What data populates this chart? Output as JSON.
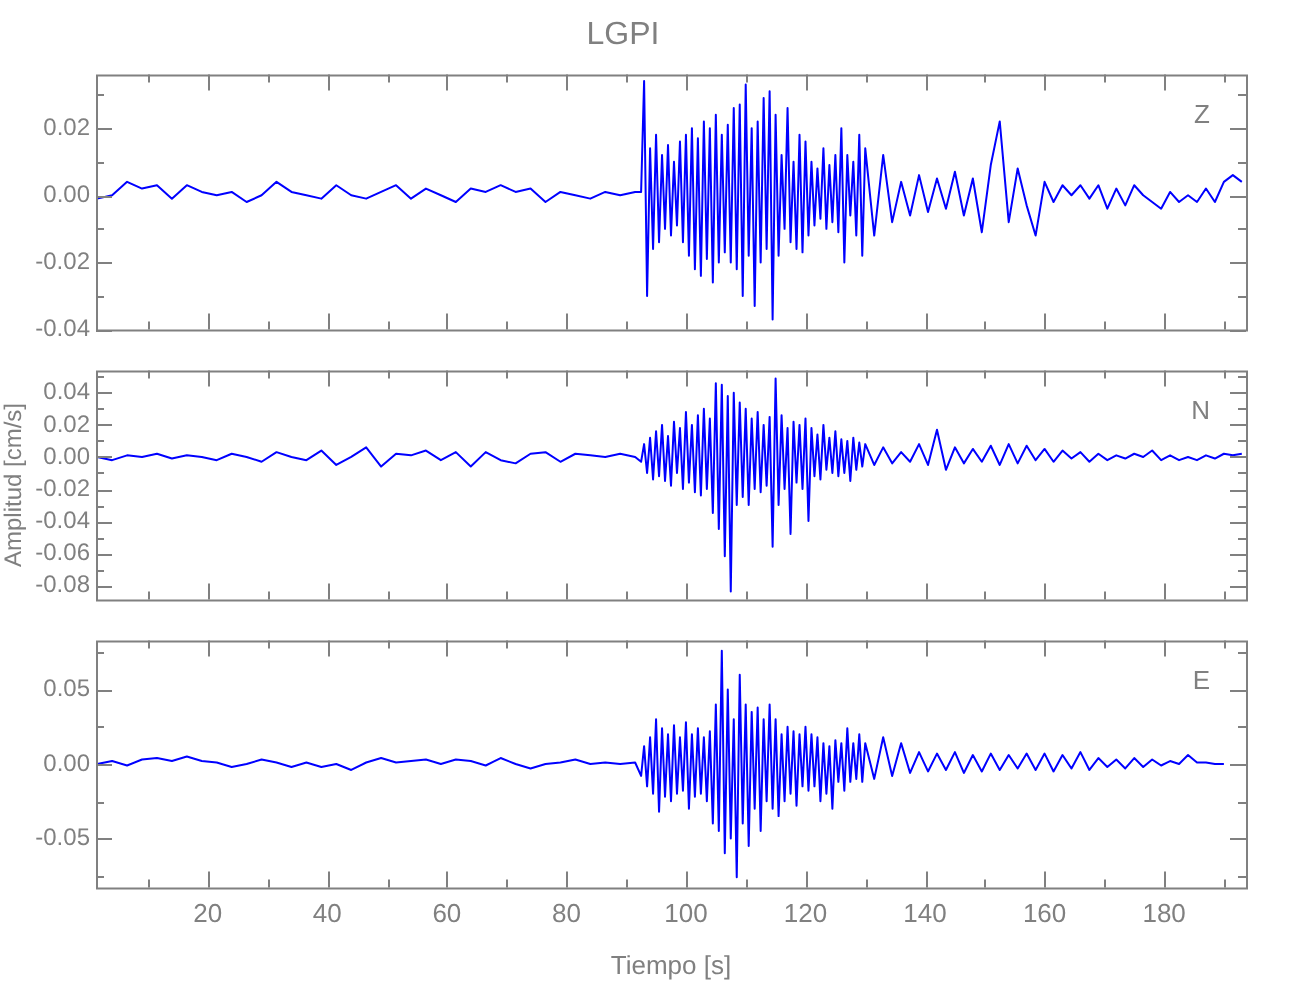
{
  "chart_data": [
    {
      "type": "line",
      "title": "LGPI",
      "annotations": [
        "Z"
      ],
      "tick_labels": "y",
      "x": [
        1.5,
        4,
        6.5,
        9,
        11.5,
        14,
        16.5,
        19,
        21.5,
        24,
        26.5,
        29,
        31.5,
        34,
        36.5,
        39,
        41.5,
        44,
        46.5,
        49,
        51.5,
        54,
        56.5,
        59,
        61.5,
        64,
        66.5,
        69,
        71.5,
        74,
        76.5,
        79,
        81.5,
        84,
        86.5,
        89,
        91.5,
        92.5,
        93,
        93.5,
        94,
        94.5,
        95,
        95.5,
        96,
        96.5,
        97,
        97.5,
        98,
        98.5,
        99,
        99.5,
        100,
        100.5,
        101,
        101.5,
        102,
        102.5,
        103,
        103.5,
        104,
        104.5,
        105,
        105.5,
        106,
        106.5,
        107,
        107.5,
        108,
        108.5,
        109,
        109.5,
        110,
        110.5,
        111,
        111.5,
        112,
        112.5,
        113,
        113.5,
        114,
        114.5,
        115,
        115.5,
        116,
        116.5,
        117,
        117.5,
        118,
        118.5,
        119,
        119.5,
        120,
        120.5,
        121,
        121.5,
        122,
        122.5,
        123,
        123.5,
        124,
        124.5,
        125,
        125.5,
        126,
        126.5,
        127,
        127.5,
        128,
        128.5,
        129,
        129.5,
        130,
        131.5,
        133,
        134.5,
        136,
        137.5,
        139,
        140.5,
        142,
        143.5,
        145,
        146.5,
        148,
        149.5,
        151,
        152.5,
        154,
        155.5,
        157,
        158.5,
        160,
        161.5,
        163,
        164.5,
        166,
        167.5,
        169,
        170.5,
        172,
        173.5,
        175,
        176.5,
        178,
        179.5,
        181,
        182.5,
        184,
        185.5,
        187,
        188.5,
        190,
        191.5,
        193
      ],
      "series": [
        {
          "color": "#0000ff",
          "values": [
            -0.001,
            0.0,
            0.004,
            0.002,
            0.003,
            -0.001,
            0.003,
            0.001,
            0.0,
            0.001,
            -0.002,
            0.0,
            0.004,
            0.001,
            0.0,
            -0.001,
            0.003,
            0.0,
            -0.001,
            0.001,
            0.003,
            -0.001,
            0.002,
            0.0,
            -0.002,
            0.002,
            0.001,
            0.003,
            0.001,
            0.002,
            -0.002,
            0.001,
            0.0,
            -0.001,
            0.001,
            0.0,
            0.001,
            0.001,
            0.034,
            -0.03,
            0.014,
            -0.016,
            0.018,
            -0.014,
            0.012,
            -0.01,
            0.015,
            -0.012,
            0.01,
            -0.009,
            0.016,
            -0.014,
            0.018,
            -0.018,
            0.02,
            -0.022,
            0.017,
            -0.024,
            0.022,
            -0.019,
            0.02,
            -0.026,
            0.024,
            -0.02,
            0.018,
            -0.017,
            0.021,
            -0.02,
            0.026,
            -0.022,
            0.027,
            -0.03,
            0.033,
            -0.018,
            0.02,
            -0.033,
            0.022,
            -0.02,
            0.029,
            -0.016,
            0.031,
            -0.037,
            0.024,
            -0.018,
            0.012,
            -0.01,
            0.026,
            -0.014,
            0.01,
            -0.016,
            0.018,
            -0.017,
            0.016,
            -0.012,
            0.01,
            -0.009,
            0.008,
            -0.007,
            0.014,
            -0.01,
            0.009,
            -0.008,
            0.012,
            -0.011,
            0.02,
            -0.02,
            0.012,
            -0.006,
            0.01,
            -0.012,
            0.018,
            -0.018,
            0.014,
            -0.012,
            0.012,
            -0.008,
            0.004,
            -0.006,
            0.006,
            -0.005,
            0.005,
            -0.004,
            0.007,
            -0.006,
            0.005,
            -0.011,
            0.009,
            0.022,
            -0.008,
            0.008,
            -0.003,
            -0.012,
            0.004,
            -0.002,
            0.003,
            0.0,
            0.003,
            -0.001,
            0.003,
            -0.004,
            0.002,
            -0.003,
            0.003,
            0.0,
            -0.002,
            -0.004,
            0.001,
            -0.002,
            0.0,
            -0.002,
            0.002,
            -0.002,
            0.004,
            0.006,
            0.004
          ]
        }
      ],
      "xlim": [
        1.3,
        193.7
      ],
      "xticks": [
        {
          "value": 10,
          "label": null
        },
        20,
        {
          "value": 30,
          "label": null
        },
        40,
        {
          "value": 50,
          "label": null
        },
        60,
        {
          "value": 70,
          "label": null
        },
        80,
        {
          "value": 90,
          "label": null
        },
        100,
        {
          "value": 110,
          "label": null
        },
        120,
        {
          "value": 130,
          "label": null
        },
        140,
        {
          "value": 150,
          "label": null
        },
        160,
        {
          "value": 170,
          "label": null
        },
        180,
        {
          "value": 190,
          "label": null
        }
      ],
      "ylim": [
        -0.04,
        0.036
      ],
      "yticks": [
        {
          "value": -0.04,
          "label": "-0.04"
        },
        {
          "value": -0.03,
          "label": null
        },
        {
          "value": -0.02,
          "label": "-0.02"
        },
        {
          "value": -0.01,
          "label": null
        },
        {
          "value": 0,
          "label": "0.00"
        },
        {
          "value": 0.01,
          "label": null
        },
        {
          "value": 0.02,
          "label": "0.02"
        },
        {
          "value": 0.03,
          "label": null
        }
      ]
    },
    {
      "type": "line",
      "ylabel": "Amplitud [cm/s]",
      "annotations": [
        "N"
      ],
      "tick_labels": "y",
      "x": [
        1.5,
        4,
        6.5,
        9,
        11.5,
        14,
        16.5,
        19,
        21.5,
        24,
        26.5,
        29,
        31.5,
        34,
        36.5,
        39,
        41.5,
        44,
        46.5,
        49,
        51.5,
        54,
        56.5,
        59,
        61.5,
        64,
        66.5,
        69,
        71.5,
        74,
        76.5,
        79,
        81.5,
        84,
        86.5,
        89,
        91.5,
        92.5,
        93,
        93.5,
        94,
        94.5,
        95,
        95.5,
        96,
        96.5,
        97,
        97.5,
        98,
        98.5,
        99,
        99.5,
        100,
        100.5,
        101,
        101.5,
        102,
        102.5,
        103,
        103.5,
        104,
        104.5,
        105,
        105.5,
        106,
        106.5,
        107,
        107.5,
        108,
        108.5,
        109,
        109.5,
        110,
        110.5,
        111,
        111.5,
        112,
        112.5,
        113,
        113.5,
        114,
        114.5,
        115,
        115.5,
        116,
        116.5,
        117,
        117.5,
        118,
        118.5,
        119,
        119.5,
        120,
        120.5,
        121,
        121.5,
        122,
        122.5,
        123,
        123.5,
        124,
        124.5,
        125,
        125.5,
        126,
        126.5,
        127,
        127.5,
        128,
        128.5,
        129,
        129.5,
        130,
        131.5,
        133,
        134.5,
        136,
        137.5,
        139,
        140.5,
        142,
        143.5,
        145,
        146.5,
        148,
        149.5,
        151,
        152.5,
        154,
        155.5,
        157,
        158.5,
        160,
        161.5,
        163,
        164.5,
        166,
        167.5,
        169,
        170.5,
        172,
        173.5,
        175,
        176.5,
        178,
        179.5,
        181,
        182.5,
        184,
        185.5,
        187,
        188.5,
        190,
        191.5,
        193
      ],
      "series": [
        {
          "color": "#0000ff",
          "values": [
            0.0,
            -0.002,
            0.001,
            0.0,
            0.002,
            -0.001,
            0.001,
            0.0,
            -0.002,
            0.002,
            0.0,
            -0.003,
            0.003,
            0.0,
            -0.002,
            0.004,
            -0.005,
            0.0,
            0.006,
            -0.006,
            0.002,
            0.001,
            0.004,
            -0.002,
            0.003,
            -0.006,
            0.003,
            -0.002,
            -0.004,
            0.002,
            0.003,
            -0.003,
            0.002,
            0.001,
            0.0,
            0.002,
            0.0,
            -0.003,
            0.008,
            -0.01,
            0.012,
            -0.014,
            0.016,
            -0.012,
            0.02,
            -0.015,
            0.013,
            -0.018,
            0.022,
            -0.01,
            0.018,
            -0.02,
            0.028,
            -0.016,
            0.02,
            -0.022,
            0.026,
            -0.024,
            0.03,
            -0.02,
            0.024,
            -0.035,
            0.046,
            -0.045,
            0.045,
            -0.062,
            0.038,
            -0.084,
            0.04,
            -0.03,
            0.034,
            -0.025,
            0.03,
            -0.03,
            0.024,
            -0.02,
            0.028,
            -0.022,
            0.02,
            -0.018,
            0.025,
            -0.056,
            0.049,
            -0.03,
            0.026,
            -0.02,
            0.018,
            -0.048,
            0.022,
            -0.016,
            0.02,
            -0.02,
            0.024,
            -0.04,
            0.018,
            -0.012,
            0.014,
            -0.014,
            0.02,
            -0.008,
            0.012,
            -0.01,
            0.016,
            -0.012,
            0.011,
            -0.01,
            0.01,
            -0.015,
            0.012,
            -0.008,
            0.009,
            -0.006,
            0.008,
            -0.005,
            0.006,
            -0.004,
            0.003,
            -0.003,
            0.008,
            -0.005,
            0.017,
            -0.008,
            0.006,
            -0.004,
            0.005,
            -0.003,
            0.007,
            -0.005,
            0.008,
            -0.004,
            0.007,
            -0.002,
            0.005,
            -0.003,
            0.004,
            -0.001,
            0.003,
            -0.003,
            0.002,
            -0.002,
            0.001,
            -0.001,
            0.002,
            0.0,
            0.004,
            -0.002,
            0.001,
            -0.002,
            0.0,
            -0.002,
            0.001,
            -0.001,
            0.002,
            0.001,
            0.002
          ]
        }
      ],
      "xlim": [
        1.3,
        193.7
      ],
      "xticks": [
        {
          "value": 10,
          "label": null
        },
        20,
        {
          "value": 30,
          "label": null
        },
        40,
        {
          "value": 50,
          "label": null
        },
        60,
        {
          "value": 70,
          "label": null
        },
        80,
        {
          "value": 90,
          "label": null
        },
        100,
        {
          "value": 110,
          "label": null
        },
        120,
        {
          "value": 130,
          "label": null
        },
        140,
        {
          "value": 150,
          "label": null
        },
        160,
        {
          "value": 170,
          "label": null
        },
        180,
        {
          "value": 190,
          "label": null
        }
      ],
      "ylim": [
        -0.089,
        0.054
      ],
      "yticks": [
        {
          "value": -0.08,
          "label": "-0.08"
        },
        {
          "value": -0.07,
          "label": null
        },
        {
          "value": -0.06,
          "label": "-0.06"
        },
        {
          "value": -0.05,
          "label": null
        },
        {
          "value": -0.04,
          "label": "-0.04"
        },
        {
          "value": -0.03,
          "label": null
        },
        {
          "value": -0.02,
          "label": "-0.02"
        },
        {
          "value": -0.01,
          "label": null
        },
        {
          "value": 0,
          "label": "0.00"
        },
        {
          "value": 0.01,
          "label": null
        },
        {
          "value": 0.02,
          "label": "0.02"
        },
        {
          "value": 0.03,
          "label": null
        },
        {
          "value": 0.04,
          "label": "0.04"
        },
        {
          "value": 0.05,
          "label": null
        }
      ]
    },
    {
      "type": "line",
      "xlabel": "Tiempo [s]",
      "annotations": [
        "E"
      ],
      "x": [
        1.5,
        4,
        6.5,
        9,
        11.5,
        14,
        16.5,
        19,
        21.5,
        24,
        26.5,
        29,
        31.5,
        34,
        36.5,
        39,
        41.5,
        44,
        46.5,
        49,
        51.5,
        54,
        56.5,
        59,
        61.5,
        64,
        66.5,
        69,
        71.5,
        74,
        76.5,
        79,
        81.5,
        84,
        86.5,
        89,
        91.5,
        92.5,
        93,
        93.5,
        94,
        94.5,
        95,
        95.5,
        96,
        96.5,
        97,
        97.5,
        98,
        98.5,
        99,
        99.5,
        100,
        100.5,
        101,
        101.5,
        102,
        102.5,
        103,
        103.5,
        104,
        104.5,
        105,
        105.5,
        106,
        106.5,
        107,
        107.5,
        108,
        108.5,
        109,
        109.5,
        110,
        110.5,
        111,
        111.5,
        112,
        112.5,
        113,
        113.5,
        114,
        114.5,
        115,
        115.5,
        116,
        116.5,
        117,
        117.5,
        118,
        118.5,
        119,
        119.5,
        120,
        120.5,
        121,
        121.5,
        122,
        122.5,
        123,
        123.5,
        124,
        124.5,
        125,
        125.5,
        126,
        126.5,
        127,
        127.5,
        128,
        128.5,
        129,
        129.5,
        130,
        131.5,
        133,
        134.5,
        136,
        137.5,
        139,
        140.5,
        142,
        143.5,
        145,
        146.5,
        148,
        149.5,
        151,
        152.5,
        154,
        155.5,
        157,
        158.5,
        160,
        161.5,
        163,
        164.5,
        166,
        167.5,
        169,
        170.5,
        172,
        173.5,
        175,
        176.5,
        178,
        179.5,
        181,
        182.5,
        184,
        185.5,
        187,
        188.5,
        190
      ],
      "series": [
        {
          "color": "#0000ff",
          "values": [
            0.0,
            0.002,
            -0.001,
            0.003,
            0.004,
            0.002,
            0.005,
            0.002,
            0.001,
            -0.002,
            0.0,
            0.003,
            0.001,
            -0.002,
            0.001,
            -0.002,
            0.0,
            -0.004,
            0.001,
            0.004,
            0.001,
            0.002,
            0.003,
            0.0,
            0.003,
            0.002,
            -0.001,
            0.004,
            0.0,
            -0.003,
            0.0,
            0.001,
            0.003,
            0.0,
            0.001,
            0.0,
            0.001,
            -0.008,
            0.012,
            -0.015,
            0.018,
            -0.02,
            0.03,
            -0.032,
            0.024,
            -0.022,
            0.02,
            -0.025,
            0.026,
            -0.02,
            0.018,
            -0.018,
            0.028,
            -0.03,
            0.02,
            -0.022,
            0.024,
            -0.02,
            0.018,
            -0.025,
            0.022,
            -0.04,
            0.04,
            -0.045,
            0.076,
            -0.06,
            0.05,
            -0.05,
            0.03,
            -0.076,
            0.06,
            -0.04,
            0.04,
            -0.055,
            0.035,
            -0.03,
            0.038,
            -0.045,
            0.03,
            -0.025,
            0.04,
            -0.03,
            0.03,
            -0.035,
            0.02,
            -0.025,
            0.025,
            -0.02,
            0.022,
            -0.028,
            0.02,
            -0.015,
            0.025,
            -0.018,
            0.02,
            -0.015,
            0.018,
            -0.025,
            0.014,
            -0.02,
            0.012,
            -0.03,
            0.016,
            -0.012,
            0.014,
            -0.018,
            0.024,
            -0.012,
            0.014,
            -0.01,
            0.02,
            -0.012,
            0.014,
            -0.01,
            0.018,
            -0.008,
            0.014,
            -0.006,
            0.008,
            -0.005,
            0.007,
            -0.004,
            0.008,
            -0.006,
            0.006,
            -0.005,
            0.007,
            -0.004,
            0.006,
            -0.003,
            0.007,
            -0.004,
            0.007,
            -0.005,
            0.006,
            -0.003,
            0.008,
            -0.004,
            0.004,
            -0.002,
            0.003,
            -0.003,
            0.004,
            -0.002,
            0.003,
            -0.001,
            0.002,
            0.0,
            0.006,
            0.001,
            0.001,
            0.0,
            0.0
          ]
        }
      ],
      "xlim": [
        1.3,
        193.7
      ],
      "xticks": [
        {
          "value": 10,
          "label": null
        },
        20,
        {
          "value": 30,
          "label": null
        },
        40,
        {
          "value": 50,
          "label": null
        },
        60,
        {
          "value": 70,
          "label": null
        },
        80,
        {
          "value": 90,
          "label": null
        },
        100,
        {
          "value": 110,
          "label": null
        },
        120,
        {
          "value": 130,
          "label": null
        },
        140,
        {
          "value": 150,
          "label": null
        },
        160,
        {
          "value": 170,
          "label": null
        },
        180,
        {
          "value": 190,
          "label": null
        }
      ],
      "ylim": [
        -0.083,
        0.083
      ],
      "yticks": [
        {
          "value": -0.075,
          "label": null
        },
        {
          "value": -0.05,
          "label": "-0.05"
        },
        {
          "value": -0.025,
          "label": null
        },
        {
          "value": 0,
          "label": "0.00"
        },
        {
          "value": 0.025,
          "label": null
        },
        {
          "value": 0.05,
          "label": "0.05"
        },
        {
          "value": 0.075,
          "label": null
        }
      ]
    }
  ]
}
